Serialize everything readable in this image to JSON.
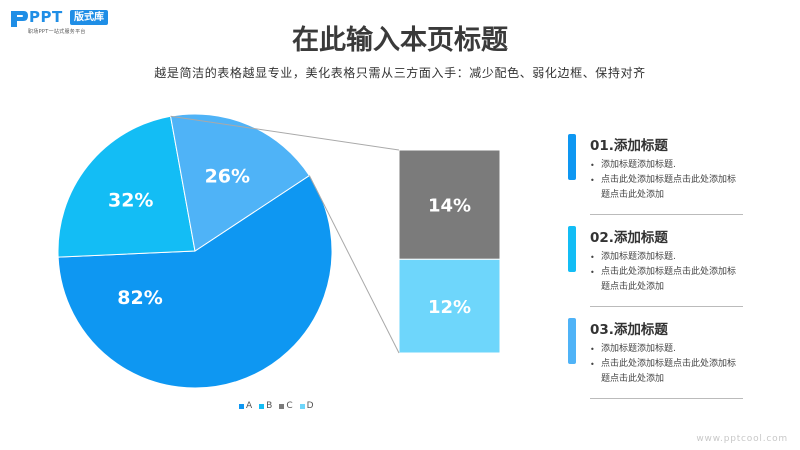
{
  "logo": {
    "brand": "PPT",
    "badge": "版式库",
    "tagline": "职场PPT一站式服务平台"
  },
  "title": "在此输入本页标题",
  "subtitle": "越是简洁的表格越显专业，美化表格只需从三方面入手：减少配色、弱化边框、保持对齐",
  "chart_data": {
    "type": "pie",
    "slices": [
      {
        "name": "A",
        "label": "82%",
        "value": 82,
        "color": "#0e97f2"
      },
      {
        "name": "B",
        "label": "32%",
        "value": 32,
        "color": "#13bdf5"
      },
      {
        "name": "C",
        "label": "26%",
        "value": 26,
        "color": "#4fb3f7"
      }
    ],
    "breakout": {
      "from_slice": "C",
      "segments": [
        {
          "name": "C",
          "label": "14%",
          "value": 14,
          "color": "#7b7b7b"
        },
        {
          "name": "D",
          "label": "12%",
          "value": 12,
          "color": "#6ed6fb"
        }
      ]
    },
    "legend": [
      {
        "name": "A",
        "color": "#0e97f2"
      },
      {
        "name": "B",
        "color": "#13bdf5"
      },
      {
        "name": "C",
        "color": "#7b7b7b"
      },
      {
        "name": "D",
        "color": "#6ed6fb"
      }
    ],
    "legend_position": "bottom"
  },
  "sections": [
    {
      "title": "01.添加标题",
      "color": "#0e97f2",
      "items": [
        "添加标题添加标题.",
        "点击此处添加标题点击此处添加标题点击此处添加"
      ]
    },
    {
      "title": "02.添加标题",
      "color": "#13bdf5",
      "items": [
        "添加标题添加标题.",
        "点击此处添加标题点击此处添加标题点击此处添加"
      ]
    },
    {
      "title": "03.添加标题",
      "color": "#4fb3f7",
      "items": [
        "添加标题添加标题.",
        "点击此处添加标题点击此处添加标题点击此处添加"
      ]
    }
  ],
  "watermark": "www.pptcool.com"
}
